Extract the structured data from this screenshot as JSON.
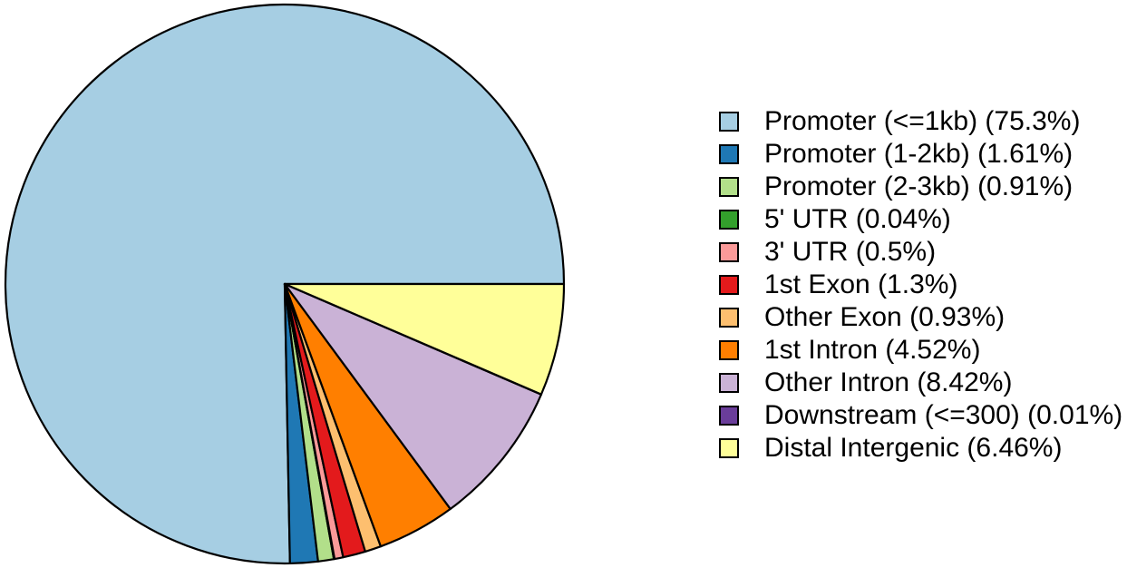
{
  "figure": {
    "background": "#ffffff",
    "stroke_color": "#000000"
  },
  "chart_data": {
    "type": "pie",
    "title": "",
    "start_angle_deg": 0,
    "direction": "counterclockwise",
    "legend_position": "right",
    "categories": [
      "Promoter (<=1kb)",
      "Promoter (1-2kb)",
      "Promoter (2-3kb)",
      "5' UTR",
      "3' UTR",
      "1st Exon",
      "Other Exon",
      "1st Intron",
      "Other Intron",
      "Downstream (<=300)",
      "Distal Intergenic"
    ],
    "values": [
      75.3,
      1.61,
      0.91,
      0.04,
      0.5,
      1.3,
      0.93,
      4.52,
      8.42,
      0.01,
      6.46
    ],
    "colors": [
      "#A6CEE3",
      "#1F78B4",
      "#B2DF8A",
      "#33A02C",
      "#FB9A99",
      "#E31A1C",
      "#FDBF6F",
      "#FF7F00",
      "#CAB2D6",
      "#6A3D9A",
      "#FFFF99"
    ],
    "legend": {
      "entries": [
        "Promoter (<=1kb) (75.3%)",
        "Promoter (1-2kb) (1.61%)",
        "Promoter (2-3kb) (0.91%)",
        "5' UTR (0.04%)",
        "3' UTR (0.5%)",
        "1st Exon (1.3%)",
        "Other Exon (0.93%)",
        "1st Intron (4.52%)",
        "Other Intron (8.42%)",
        "Downstream (<=300) (0.01%)",
        "Distal Intergenic (6.46%)"
      ]
    }
  }
}
